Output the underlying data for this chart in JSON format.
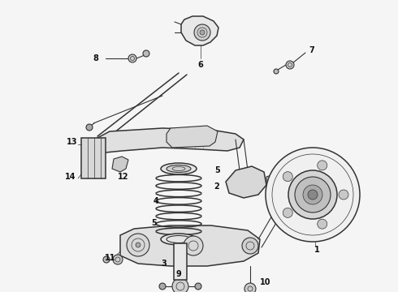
{
  "bg_color": "#f5f5f5",
  "line_color": "#333333",
  "label_color": "#111111",
  "figsize": [
    4.9,
    3.6
  ],
  "dpi": 100,
  "lw": 0.8,
  "lw_thin": 0.5,
  "lw_thick": 1.1
}
